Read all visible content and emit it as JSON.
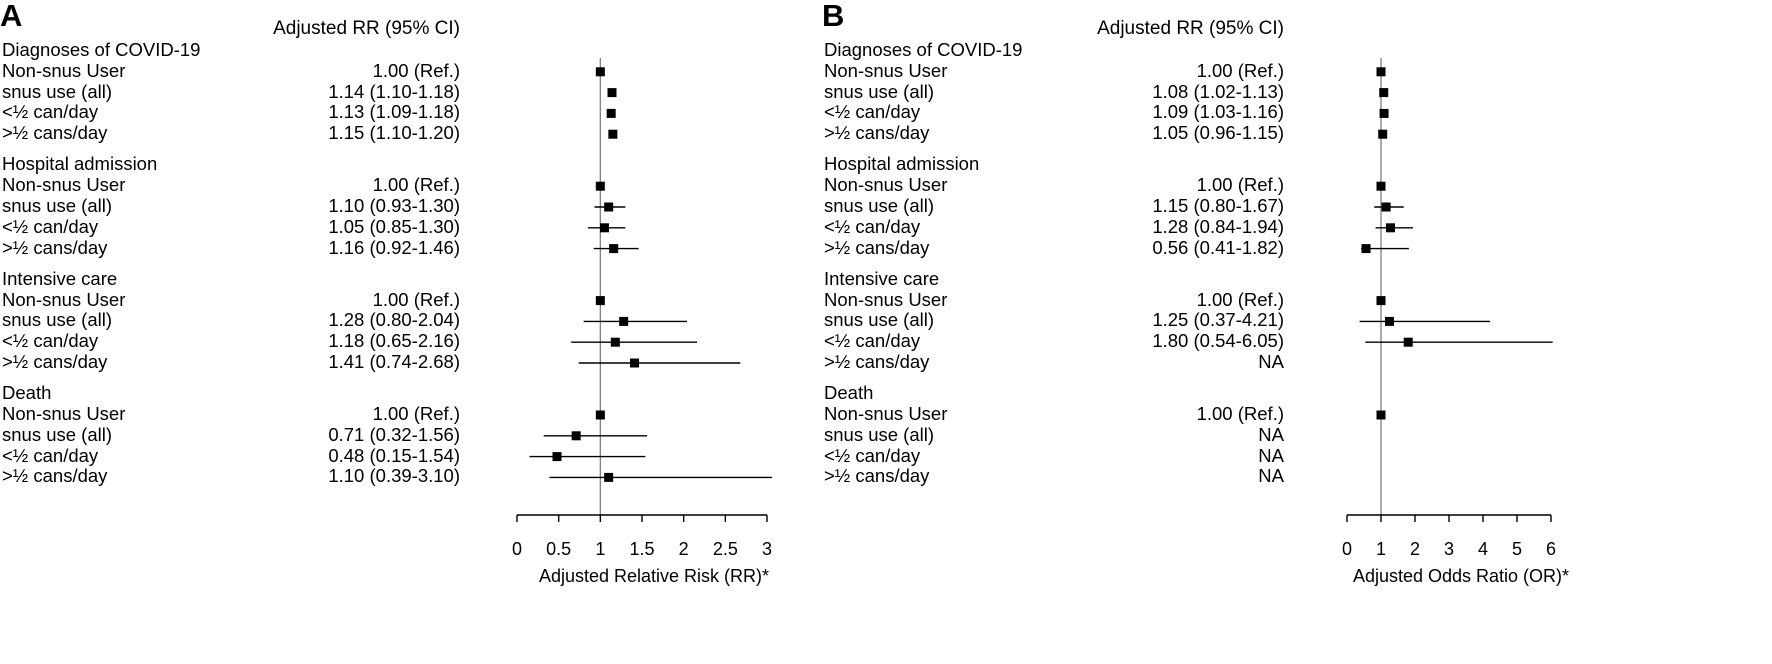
{
  "chart_data": [
    {
      "panel": "A",
      "type": "forest",
      "column_header": "Adjusted RR (95% CI)",
      "xlabel": "Adjusted Relative Risk (RR)*",
      "xlim": [
        0,
        3
      ],
      "xticks": [
        0,
        0.5,
        1,
        1.5,
        2,
        2.5,
        3
      ],
      "xtick_labels": [
        "0",
        "0.5",
        "1",
        "1.5",
        "2",
        "2.5",
        "3"
      ],
      "reference_line": 1,
      "groups": [
        {
          "title": "Diagnoses of COVID-19",
          "rows": [
            {
              "label": "Non-snus User",
              "text": "1.00 (Ref.)",
              "est": 1.0,
              "lo": null,
              "hi": null
            },
            {
              "label": "snus use (all)",
              "text": "1.14 (1.10-1.18)",
              "est": 1.14,
              "lo": 1.1,
              "hi": 1.18
            },
            {
              "label": "<½ can/day",
              "text": "1.13 (1.09-1.18)",
              "est": 1.13,
              "lo": 1.09,
              "hi": 1.18
            },
            {
              "label": ">½ cans/day",
              "text": "1.15 (1.10-1.20)",
              "est": 1.15,
              "lo": 1.1,
              "hi": 1.2
            }
          ]
        },
        {
          "title": "Hospital admission",
          "rows": [
            {
              "label": "Non-snus User",
              "text": "1.00 (Ref.)",
              "est": 1.0,
              "lo": null,
              "hi": null
            },
            {
              "label": "snus use (all)",
              "text": "1.10 (0.93-1.30)",
              "est": 1.1,
              "lo": 0.93,
              "hi": 1.3
            },
            {
              "label": "<½ can/day",
              "text": "1.05 (0.85-1.30)",
              "est": 1.05,
              "lo": 0.85,
              "hi": 1.3
            },
            {
              "label": ">½ cans/day",
              "text": "1.16 (0.92-1.46)",
              "est": 1.16,
              "lo": 0.92,
              "hi": 1.46
            }
          ]
        },
        {
          "title": "Intensive care",
          "rows": [
            {
              "label": "Non-snus User",
              "text": "1.00 (Ref.)",
              "est": 1.0,
              "lo": null,
              "hi": null
            },
            {
              "label": "snus use (all)",
              "text": "1.28 (0.80-2.04)",
              "est": 1.28,
              "lo": 0.8,
              "hi": 2.04
            },
            {
              "label": "<½ can/day",
              "text": "1.18 (0.65-2.16)",
              "est": 1.18,
              "lo": 0.65,
              "hi": 2.16
            },
            {
              "label": ">½ cans/day",
              "text": "1.41 (0.74-2.68)",
              "est": 1.41,
              "lo": 0.74,
              "hi": 2.68
            }
          ]
        },
        {
          "title": "Death",
          "rows": [
            {
              "label": "Non-snus User",
              "text": "1.00 (Ref.)",
              "est": 1.0,
              "lo": null,
              "hi": null
            },
            {
              "label": "snus use (all)",
              "text": "0.71 (0.32-1.56)",
              "est": 0.71,
              "lo": 0.32,
              "hi": 1.56
            },
            {
              "label": "<½ can/day",
              "text": "0.48 (0.15-1.54)",
              "est": 0.48,
              "lo": 0.15,
              "hi": 1.54
            },
            {
              "label": ">½ cans/day",
              "text": "1.10 (0.39-3.10)",
              "est": 1.1,
              "lo": 0.39,
              "hi": 3.1
            }
          ]
        }
      ]
    },
    {
      "panel": "B",
      "type": "forest",
      "column_header": "Adjusted RR (95% CI)",
      "xlabel": "Adjusted Odds Ratio (OR)*",
      "xlim": [
        0,
        6
      ],
      "xticks": [
        0,
        1,
        2,
        3,
        4,
        5,
        6
      ],
      "xtick_labels": [
        "0",
        "1",
        "2",
        "3",
        "4",
        "5",
        "6"
      ],
      "reference_line": 1,
      "groups": [
        {
          "title": "Diagnoses of COVID-19",
          "rows": [
            {
              "label": "Non-snus User",
              "text": "1.00 (Ref.)",
              "est": 1.0,
              "lo": null,
              "hi": null
            },
            {
              "label": "snus use (all)",
              "text": "1.08 (1.02-1.13)",
              "est": 1.08,
              "lo": 1.02,
              "hi": 1.13
            },
            {
              "label": "<½ can/day",
              "text": "1.09 (1.03-1.16)",
              "est": 1.09,
              "lo": 1.03,
              "hi": 1.16
            },
            {
              "label": ">½ cans/day",
              "text": "1.05 (0.96-1.15)",
              "est": 1.05,
              "lo": 0.96,
              "hi": 1.15
            }
          ]
        },
        {
          "title": "Hospital admission",
          "rows": [
            {
              "label": "Non-snus User",
              "text": "1.00 (Ref.)",
              "est": 1.0,
              "lo": null,
              "hi": null
            },
            {
              "label": "snus use (all)",
              "text": "1.15 (0.80-1.67)",
              "est": 1.15,
              "lo": 0.8,
              "hi": 1.67
            },
            {
              "label": "<½ can/day",
              "text": "1.28 (0.84-1.94)",
              "est": 1.28,
              "lo": 0.84,
              "hi": 1.94
            },
            {
              "label": ">½ cans/day",
              "text": "0.56 (0.41-1.82)",
              "est": 0.56,
              "lo": 0.41,
              "hi": 1.82
            }
          ]
        },
        {
          "title": "Intensive care",
          "rows": [
            {
              "label": "Non-snus User",
              "text": "1.00 (Ref.)",
              "est": 1.0,
              "lo": null,
              "hi": null
            },
            {
              "label": "snus use (all)",
              "text": "1.25 (0.37-4.21)",
              "est": 1.25,
              "lo": 0.37,
              "hi": 4.21
            },
            {
              "label": "<½ can/day",
              "text": "1.80 (0.54-6.05)",
              "est": 1.8,
              "lo": 0.54,
              "hi": 6.05
            },
            {
              "label": ">½ cans/day",
              "text": "NA",
              "est": null,
              "lo": null,
              "hi": null
            }
          ]
        },
        {
          "title": "Death",
          "rows": [
            {
              "label": "Non-snus User",
              "text": "1.00 (Ref.)",
              "est": 1.0,
              "lo": null,
              "hi": null
            },
            {
              "label": "snus use (all)",
              "text": "NA",
              "est": null,
              "lo": null,
              "hi": null
            },
            {
              "label": "<½ can/day",
              "text": "NA",
              "est": null,
              "lo": null,
              "hi": null
            },
            {
              "label": ">½ cans/day",
              "text": "NA",
              "est": null,
              "lo": null,
              "hi": null
            }
          ]
        }
      ]
    }
  ]
}
